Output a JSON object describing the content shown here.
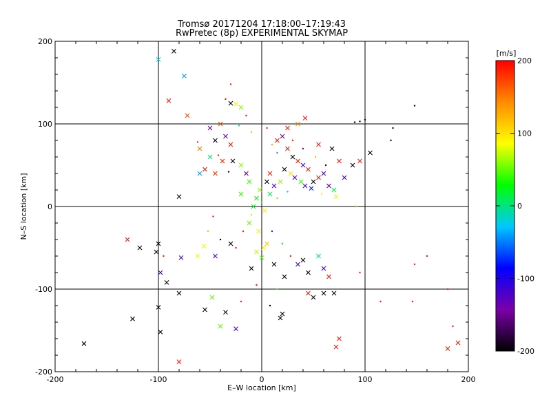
{
  "chart_data": {
    "type": "scatter",
    "title": "Tromsø 20171204 17:18:00–17:19:43",
    "subtitle": "RwPretec (8p) EXPERIMENTAL SKYMAP",
    "xlabel": "E–W location [km]",
    "ylabel": "N–S location [km]",
    "xlim": [
      -200,
      200
    ],
    "ylim": [
      -200,
      200
    ],
    "xticks": [
      "-200",
      "-100",
      "0",
      "100",
      "200"
    ],
    "yticks": [
      "-200",
      "-100",
      "0",
      "100",
      "200"
    ],
    "grid": true,
    "colorbar": {
      "unit": "[m/s]",
      "range": [
        -200,
        200
      ],
      "ticks": [
        "200",
        "100",
        "0",
        "-100",
        "-200"
      ],
      "colormap": [
        "#000000",
        "#7a00a8",
        "#0000ff",
        "#00c8ff",
        "#00ff00",
        "#ffff00",
        "#ff8c00",
        "#ff0000"
      ]
    },
    "marker_types": [
      "cross",
      "dot"
    ],
    "points": [
      {
        "x": -100,
        "y": 178,
        "v": -30,
        "m": "cross"
      },
      {
        "x": -85,
        "y": 188,
        "v": -200,
        "m": "cross"
      },
      {
        "x": -75,
        "y": 158,
        "v": -40,
        "m": "cross"
      },
      {
        "x": -90,
        "y": 128,
        "v": 190,
        "m": "cross"
      },
      {
        "x": -72,
        "y": 110,
        "v": 170,
        "m": "cross"
      },
      {
        "x": -30,
        "y": 125,
        "v": -200,
        "m": "cross"
      },
      {
        "x": -25,
        "y": 124,
        "v": 80,
        "m": "cross"
      },
      {
        "x": -20,
        "y": 120,
        "v": 60,
        "m": "cross"
      },
      {
        "x": -50,
        "y": 95,
        "v": -150,
        "m": "cross"
      },
      {
        "x": -40,
        "y": 100,
        "v": 170,
        "m": "cross"
      },
      {
        "x": -45,
        "y": 80,
        "v": -200,
        "m": "cross"
      },
      {
        "x": -35,
        "y": 85,
        "v": -120,
        "m": "cross"
      },
      {
        "x": -30,
        "y": 75,
        "v": 190,
        "m": "cross"
      },
      {
        "x": -60,
        "y": 70,
        "v": 150,
        "m": "cross"
      },
      {
        "x": -50,
        "y": 60,
        "v": 0,
        "m": "cross"
      },
      {
        "x": -55,
        "y": 45,
        "v": 190,
        "m": "cross"
      },
      {
        "x": -45,
        "y": 40,
        "v": 180,
        "m": "cross"
      },
      {
        "x": -38,
        "y": 55,
        "v": 190,
        "m": "cross"
      },
      {
        "x": -28,
        "y": 55,
        "v": -200,
        "m": "cross"
      },
      {
        "x": -20,
        "y": 50,
        "v": 60,
        "m": "cross"
      },
      {
        "x": -15,
        "y": 40,
        "v": -130,
        "m": "cross"
      },
      {
        "x": -12,
        "y": 30,
        "v": 40,
        "m": "cross"
      },
      {
        "x": -60,
        "y": 40,
        "v": -40,
        "m": "cross"
      },
      {
        "x": -80,
        "y": 12,
        "v": -200,
        "m": "cross"
      },
      {
        "x": -56,
        "y": -48,
        "v": 80,
        "m": "cross"
      },
      {
        "x": -130,
        "y": -40,
        "v": 190,
        "m": "cross"
      },
      {
        "x": -118,
        "y": -50,
        "v": -200,
        "m": "cross"
      },
      {
        "x": -100,
        "y": -45,
        "v": -200,
        "m": "cross"
      },
      {
        "x": -102,
        "y": -55,
        "v": -200,
        "m": "cross"
      },
      {
        "x": -98,
        "y": -80,
        "v": -120,
        "m": "cross"
      },
      {
        "x": -92,
        "y": -92,
        "v": -200,
        "m": "cross"
      },
      {
        "x": -78,
        "y": -62,
        "v": -120,
        "m": "cross"
      },
      {
        "x": -62,
        "y": -60,
        "v": 80,
        "m": "cross"
      },
      {
        "x": -45,
        "y": -60,
        "v": -120,
        "m": "cross"
      },
      {
        "x": -30,
        "y": -45,
        "v": -200,
        "m": "cross"
      },
      {
        "x": -80,
        "y": -105,
        "v": -200,
        "m": "cross"
      },
      {
        "x": -48,
        "y": -110,
        "v": 50,
        "m": "cross"
      },
      {
        "x": -35,
        "y": -128,
        "v": -200,
        "m": "cross"
      },
      {
        "x": -55,
        "y": -125,
        "v": -200,
        "m": "cross"
      },
      {
        "x": -40,
        "y": -145,
        "v": 50,
        "m": "cross"
      },
      {
        "x": -25,
        "y": -148,
        "v": -120,
        "m": "cross"
      },
      {
        "x": -100,
        "y": -122,
        "v": -200,
        "m": "cross"
      },
      {
        "x": -125,
        "y": -136,
        "v": -200,
        "m": "cross"
      },
      {
        "x": -98,
        "y": -152,
        "v": -200,
        "m": "cross"
      },
      {
        "x": -172,
        "y": -166,
        "v": -200,
        "m": "cross"
      },
      {
        "x": -80,
        "y": -188,
        "v": 190,
        "m": "cross"
      },
      {
        "x": 15,
        "y": 80,
        "v": 190,
        "m": "cross"
      },
      {
        "x": 20,
        "y": 85,
        "v": -150,
        "m": "cross"
      },
      {
        "x": 25,
        "y": 70,
        "v": 190,
        "m": "cross"
      },
      {
        "x": 30,
        "y": 60,
        "v": -200,
        "m": "cross"
      },
      {
        "x": 35,
        "y": 55,
        "v": 190,
        "m": "cross"
      },
      {
        "x": 40,
        "y": 50,
        "v": -120,
        "m": "cross"
      },
      {
        "x": 45,
        "y": 45,
        "v": 190,
        "m": "cross"
      },
      {
        "x": 22,
        "y": 45,
        "v": -200,
        "m": "cross"
      },
      {
        "x": 28,
        "y": 40,
        "v": 100,
        "m": "cross"
      },
      {
        "x": 32,
        "y": 35,
        "v": -120,
        "m": "cross"
      },
      {
        "x": 38,
        "y": 30,
        "v": 40,
        "m": "cross"
      },
      {
        "x": 42,
        "y": 25,
        "v": -120,
        "m": "cross"
      },
      {
        "x": 50,
        "y": 30,
        "v": -200,
        "m": "cross"
      },
      {
        "x": 55,
        "y": 35,
        "v": 190,
        "m": "cross"
      },
      {
        "x": 60,
        "y": 40,
        "v": -120,
        "m": "cross"
      },
      {
        "x": 65,
        "y": 25,
        "v": -120,
        "m": "cross"
      },
      {
        "x": 70,
        "y": 20,
        "v": 10,
        "m": "cross"
      },
      {
        "x": 48,
        "y": 22,
        "v": -80,
        "m": "cross"
      },
      {
        "x": 18,
        "y": 30,
        "v": 60,
        "m": "cross"
      },
      {
        "x": 12,
        "y": 25,
        "v": -120,
        "m": "cross"
      },
      {
        "x": 8,
        "y": 40,
        "v": 190,
        "m": "cross"
      },
      {
        "x": 5,
        "y": 30,
        "v": -200,
        "m": "cross"
      },
      {
        "x": 25,
        "y": 95,
        "v": 190,
        "m": "cross"
      },
      {
        "x": 35,
        "y": 100,
        "v": 140,
        "m": "cross"
      },
      {
        "x": 42,
        "y": 107,
        "v": 190,
        "m": "cross"
      },
      {
        "x": 55,
        "y": 75,
        "v": 190,
        "m": "cross"
      },
      {
        "x": 68,
        "y": 70,
        "v": -200,
        "m": "cross"
      },
      {
        "x": 75,
        "y": 55,
        "v": 190,
        "m": "cross"
      },
      {
        "x": 88,
        "y": 50,
        "v": -200,
        "m": "cross"
      },
      {
        "x": 95,
        "y": 55,
        "v": 190,
        "m": "cross"
      },
      {
        "x": 105,
        "y": 65,
        "v": -200,
        "m": "cross"
      },
      {
        "x": 80,
        "y": 35,
        "v": -120,
        "m": "cross"
      },
      {
        "x": 72,
        "y": 12,
        "v": 90,
        "m": "cross"
      },
      {
        "x": 2,
        "y": -50,
        "v": 90,
        "m": "cross"
      },
      {
        "x": -5,
        "y": -55,
        "v": 70,
        "m": "cross"
      },
      {
        "x": 0,
        "y": -62,
        "v": 50,
        "m": "cross"
      },
      {
        "x": 5,
        "y": -45,
        "v": 110,
        "m": "cross"
      },
      {
        "x": -10,
        "y": -75,
        "v": -200,
        "m": "cross"
      },
      {
        "x": 12,
        "y": -70,
        "v": -200,
        "m": "cross"
      },
      {
        "x": 22,
        "y": -85,
        "v": -200,
        "m": "cross"
      },
      {
        "x": 35,
        "y": -70,
        "v": -120,
        "m": "cross"
      },
      {
        "x": 40,
        "y": -65,
        "v": -200,
        "m": "cross"
      },
      {
        "x": 45,
        "y": -80,
        "v": -200,
        "m": "cross"
      },
      {
        "x": 55,
        "y": -60,
        "v": 0,
        "m": "cross"
      },
      {
        "x": 60,
        "y": -75,
        "v": -120,
        "m": "cross"
      },
      {
        "x": 65,
        "y": -85,
        "v": 190,
        "m": "cross"
      },
      {
        "x": 70,
        "y": -105,
        "v": -200,
        "m": "cross"
      },
      {
        "x": 60,
        "y": -105,
        "v": -200,
        "m": "cross"
      },
      {
        "x": 45,
        "y": -105,
        "v": 190,
        "m": "cross"
      },
      {
        "x": 50,
        "y": -110,
        "v": -200,
        "m": "cross"
      },
      {
        "x": 20,
        "y": -130,
        "v": -200,
        "m": "cross"
      },
      {
        "x": 18,
        "y": -135,
        "v": -200,
        "m": "cross"
      },
      {
        "x": 75,
        "y": -160,
        "v": 190,
        "m": "cross"
      },
      {
        "x": 72,
        "y": -170,
        "v": 190,
        "m": "cross"
      },
      {
        "x": 180,
        "y": -172,
        "v": 190,
        "m": "cross"
      },
      {
        "x": 190,
        "y": -165,
        "v": 190,
        "m": "cross"
      },
      {
        "x": -5,
        "y": 10,
        "v": 30,
        "m": "cross"
      },
      {
        "x": -2,
        "y": 20,
        "v": 60,
        "m": "cross"
      },
      {
        "x": -8,
        "y": 0,
        "v": 20,
        "m": "cross"
      },
      {
        "x": 3,
        "y": -5,
        "v": 90,
        "m": "cross"
      },
      {
        "x": -12,
        "y": -20,
        "v": 50,
        "m": "cross"
      },
      {
        "x": -3,
        "y": -30,
        "v": 80,
        "m": "cross"
      },
      {
        "x": 8,
        "y": 15,
        "v": 10,
        "m": "cross"
      },
      {
        "x": -20,
        "y": 15,
        "v": 40,
        "m": "cross"
      },
      {
        "x": -32,
        "y": 42,
        "v": -200,
        "m": "dot"
      },
      {
        "x": -42,
        "y": 62,
        "v": 190,
        "m": "dot"
      },
      {
        "x": -62,
        "y": 78,
        "v": 190,
        "m": "dot"
      },
      {
        "x": -22,
        "y": 98,
        "v": 0,
        "m": "dot"
      },
      {
        "x": -15,
        "y": 110,
        "v": 190,
        "m": "dot"
      },
      {
        "x": -10,
        "y": 90,
        "v": 60,
        "m": "dot"
      },
      {
        "x": 5,
        "y": 95,
        "v": 190,
        "m": "dot"
      },
      {
        "x": 10,
        "y": 75,
        "v": 130,
        "m": "dot"
      },
      {
        "x": 15,
        "y": 65,
        "v": -40,
        "m": "dot"
      },
      {
        "x": 30,
        "y": 80,
        "v": 190,
        "m": "dot"
      },
      {
        "x": 40,
        "y": 70,
        "v": -150,
        "m": "dot"
      },
      {
        "x": 52,
        "y": 60,
        "v": 120,
        "m": "dot"
      },
      {
        "x": 62,
        "y": 50,
        "v": -200,
        "m": "dot"
      },
      {
        "x": 58,
        "y": 15,
        "v": 80,
        "m": "dot"
      },
      {
        "x": 25,
        "y": 18,
        "v": -30,
        "m": "dot"
      },
      {
        "x": 15,
        "y": 10,
        "v": 50,
        "m": "dot"
      },
      {
        "x": 0,
        "y": 5,
        "v": 30,
        "m": "dot"
      },
      {
        "x": -10,
        "y": -10,
        "v": 70,
        "m": "dot"
      },
      {
        "x": -18,
        "y": -30,
        "v": 190,
        "m": "dot"
      },
      {
        "x": -25,
        "y": -50,
        "v": 190,
        "m": "dot"
      },
      {
        "x": -40,
        "y": -40,
        "v": -200,
        "m": "dot"
      },
      {
        "x": -47,
        "y": -12,
        "v": 190,
        "m": "dot"
      },
      {
        "x": -52,
        "y": -30,
        "v": 120,
        "m": "dot"
      },
      {
        "x": 10,
        "y": -30,
        "v": -120,
        "m": "dot"
      },
      {
        "x": 20,
        "y": -45,
        "v": 30,
        "m": "dot"
      },
      {
        "x": 28,
        "y": -60,
        "v": 190,
        "m": "dot"
      },
      {
        "x": 15,
        "y": -100,
        "v": 40,
        "m": "dot"
      },
      {
        "x": -5,
        "y": -95,
        "v": 190,
        "m": "dot"
      },
      {
        "x": -20,
        "y": -115,
        "v": 190,
        "m": "dot"
      },
      {
        "x": 8,
        "y": -120,
        "v": -200,
        "m": "dot"
      },
      {
        "x": -95,
        "y": -60,
        "v": 190,
        "m": "dot"
      },
      {
        "x": 95,
        "y": 103,
        "v": -200,
        "m": "dot"
      },
      {
        "x": 100,
        "y": 105,
        "v": -200,
        "m": "dot"
      },
      {
        "x": 90,
        "y": 102,
        "v": -200,
        "m": "dot"
      },
      {
        "x": 127,
        "y": 95,
        "v": -200,
        "m": "dot"
      },
      {
        "x": 125,
        "y": 80,
        "v": -200,
        "m": "dot"
      },
      {
        "x": 148,
        "y": 122,
        "v": -200,
        "m": "dot"
      },
      {
        "x": 180,
        "y": -100,
        "v": 190,
        "m": "dot"
      },
      {
        "x": 146,
        "y": -115,
        "v": 190,
        "m": "dot"
      },
      {
        "x": 115,
        "y": -115,
        "v": 190,
        "m": "dot"
      },
      {
        "x": 160,
        "y": -60,
        "v": 190,
        "m": "dot"
      },
      {
        "x": 148,
        "y": -70,
        "v": 190,
        "m": "dot"
      },
      {
        "x": 185,
        "y": -145,
        "v": 190,
        "m": "dot"
      },
      {
        "x": 95,
        "y": -80,
        "v": 190,
        "m": "dot"
      },
      {
        "x": 92,
        "y": 0,
        "v": 130,
        "m": "dot"
      },
      {
        "x": -30,
        "y": 148,
        "v": 190,
        "m": "dot"
      },
      {
        "x": -35,
        "y": 130,
        "v": 190,
        "m": "dot"
      }
    ]
  }
}
